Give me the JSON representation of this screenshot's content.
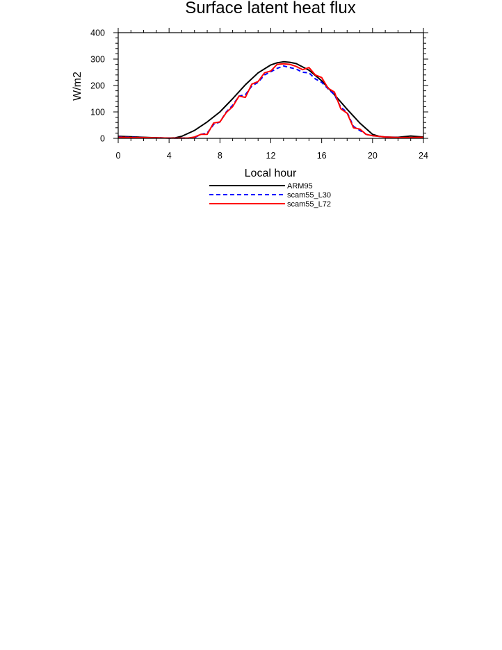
{
  "chart_data": {
    "type": "line",
    "title": "Surface latent heat flux",
    "xlabel": "Local hour",
    "ylabel": "W/m2",
    "xlim": [
      0,
      24
    ],
    "ylim": [
      0,
      400
    ],
    "x_ticks": [
      0,
      4,
      8,
      12,
      16,
      20,
      24
    ],
    "y_ticks": [
      0,
      100,
      200,
      300,
      400
    ],
    "grid": false,
    "legend_position": "below",
    "series": [
      {
        "name": "ARM95",
        "color": "#000000",
        "dash": "solid",
        "x": [
          0,
          1,
          2,
          3,
          4,
          4.5,
          5,
          6,
          7,
          8,
          9,
          10,
          11,
          12,
          12.5,
          13,
          13.5,
          14,
          15,
          16,
          17,
          18,
          19,
          20,
          20.5,
          21,
          22,
          23,
          24
        ],
        "y": [
          8,
          6,
          4,
          2,
          1,
          2,
          8,
          30,
          62,
          100,
          150,
          203,
          248,
          278,
          286,
          290,
          288,
          283,
          258,
          218,
          165,
          110,
          58,
          15,
          8,
          5,
          4,
          9,
          5
        ]
      },
      {
        "name": "scam55_L30",
        "color": "#0000ff",
        "dash": "dashed",
        "x": [
          0,
          1,
          2,
          3,
          4,
          5,
          5.5,
          6,
          6.5,
          7,
          7.5,
          8,
          8.5,
          9,
          9.5,
          10,
          10.5,
          11,
          11.5,
          12,
          12.5,
          13,
          13.5,
          14,
          14.5,
          15,
          15.5,
          16,
          16.5,
          17,
          17.5,
          18,
          18.5,
          19,
          19.5,
          20,
          21,
          22,
          23,
          24
        ],
        "y": [
          5,
          4,
          3,
          2,
          1,
          1,
          1,
          3,
          15,
          20,
          52,
          62,
          100,
          125,
          160,
          165,
          198,
          212,
          240,
          252,
          265,
          274,
          268,
          262,
          250,
          248,
          225,
          212,
          188,
          165,
          118,
          98,
          45,
          30,
          15,
          10,
          5,
          3,
          2,
          3
        ]
      },
      {
        "name": "scam55_L72",
        "color": "#ff0000",
        "dash": "solid",
        "x": [
          0,
          1,
          2,
          3,
          4,
          5,
          5.5,
          6,
          6.5,
          7,
          7.5,
          8,
          8.5,
          9,
          9.5,
          10,
          10.5,
          11,
          11.5,
          12,
          12.5,
          13,
          13.5,
          14,
          14.5,
          15,
          15.5,
          16,
          16.5,
          17,
          17.5,
          18,
          18.5,
          19,
          19.5,
          20,
          21,
          22,
          23,
          24
        ],
        "y": [
          4,
          3,
          3,
          2,
          1,
          1,
          1,
          5,
          15,
          15,
          58,
          62,
          98,
          120,
          160,
          155,
          205,
          215,
          248,
          255,
          280,
          282,
          280,
          272,
          260,
          268,
          240,
          230,
          190,
          175,
          112,
          95,
          40,
          35,
          15,
          10,
          5,
          3,
          3,
          4
        ]
      }
    ]
  }
}
